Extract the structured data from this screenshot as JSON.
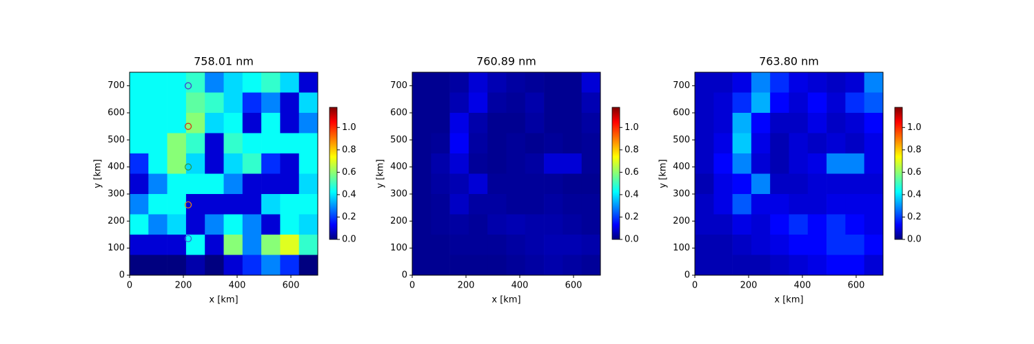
{
  "chart_data": [
    {
      "type": "heatmap",
      "title": "758.01 nm",
      "xlabel": "x [km]",
      "ylabel": "y [km]",
      "colormap": "jet",
      "xlim": [
        0,
        700
      ],
      "ylim": [
        0,
        750
      ],
      "xticks": [
        0,
        200,
        400,
        600
      ],
      "yticks": [
        0,
        100,
        200,
        300,
        400,
        500,
        600,
        700
      ],
      "clim": [
        0,
        1.18
      ],
      "cticks": [
        {
          "value": 0,
          "label": "0.0"
        },
        0.2,
        0.4,
        0.6,
        0.8,
        {
          "value": 1,
          "label": "1.0"
        }
      ],
      "z": [
        [
          0.45,
          0.45,
          0.45,
          0.5,
          0.3,
          0.4,
          0.45,
          0.5,
          0.4,
          0.1
        ],
        [
          0.45,
          0.45,
          0.45,
          0.55,
          0.5,
          0.4,
          0.2,
          0.3,
          0.1,
          0.4
        ],
        [
          0.45,
          0.45,
          0.45,
          0.6,
          0.4,
          0.45,
          0.1,
          0.45,
          0.1,
          0.3
        ],
        [
          0.45,
          0.45,
          0.6,
          0.5,
          0.1,
          0.5,
          0.45,
          0.45,
          0.45,
          0.45
        ],
        [
          0.2,
          0.45,
          0.6,
          0.4,
          0.1,
          0.4,
          0.5,
          0.2,
          0.1,
          0.45
        ],
        [
          0.1,
          0.3,
          0.45,
          0.45,
          0.45,
          0.3,
          0.1,
          0.1,
          0.1,
          0.4
        ],
        [
          0.3,
          0.45,
          0.45,
          0.1,
          0.1,
          0.1,
          0.1,
          0.4,
          0.45,
          0.45
        ],
        [
          0.45,
          0.3,
          0.4,
          0.1,
          0.3,
          0.45,
          0.3,
          0.1,
          0.45,
          0.4
        ],
        [
          0.1,
          0.1,
          0.1,
          0.45,
          0.1,
          0.6,
          0.3,
          0.6,
          0.7,
          0.5
        ],
        [
          0,
          0,
          0,
          0.05,
          0,
          0.1,
          0.2,
          0.3,
          0.2,
          0
        ]
      ],
      "markers": {
        "x": [
          218,
          218,
          218,
          218,
          218
        ],
        "y": [
          700,
          550,
          400,
          260,
          135
        ],
        "colors": [
          "#4a3fc8",
          "#d03a1a",
          "#2a9a4a",
          "#e0801a",
          "#3a5ae0"
        ]
      }
    },
    {
      "type": "heatmap",
      "title": "760.89 nm",
      "xlabel": "x [km]",
      "ylabel": "y [km]",
      "colormap": "jet",
      "xlim": [
        0,
        700
      ],
      "ylim": [
        0,
        750
      ],
      "xticks": [
        0,
        200,
        400,
        600
      ],
      "yticks": [
        0,
        100,
        200,
        300,
        400,
        500,
        600,
        700
      ],
      "clim": [
        0,
        1.18
      ],
      "cticks": [
        {
          "value": 0,
          "label": "0.0"
        },
        0.2,
        0.4,
        0.6,
        0.8,
        {
          "value": 1,
          "label": "1.0"
        }
      ],
      "z": [
        [
          0.02,
          0.02,
          0.04,
          0.1,
          0.06,
          0.04,
          0.03,
          0.02,
          0.02,
          0.1
        ],
        [
          0.02,
          0.02,
          0.06,
          0.12,
          0.04,
          0.03,
          0.05,
          0.02,
          0.02,
          0.06
        ],
        [
          0.02,
          0.02,
          0.12,
          0.05,
          0.02,
          0.02,
          0.04,
          0.02,
          0.02,
          0.04
        ],
        [
          0.02,
          0.03,
          0.14,
          0.04,
          0.02,
          0.03,
          0.02,
          0.03,
          0.02,
          0.03
        ],
        [
          0.02,
          0.05,
          0.1,
          0.03,
          0.02,
          0.03,
          0.04,
          0.1,
          0.1,
          0.03
        ],
        [
          0.02,
          0.04,
          0.06,
          0.1,
          0.03,
          0.03,
          0.03,
          0.03,
          0.02,
          0.02
        ],
        [
          0.02,
          0.03,
          0.08,
          0.04,
          0.04,
          0.03,
          0.03,
          0.04,
          0.03,
          0.03
        ],
        [
          0.02,
          0.03,
          0.04,
          0.03,
          0.05,
          0.06,
          0.05,
          0.05,
          0.04,
          0.03
        ],
        [
          0.02,
          0.02,
          0.03,
          0.03,
          0.03,
          0.04,
          0.05,
          0.06,
          0.06,
          0.05
        ],
        [
          0.02,
          0.02,
          0.02,
          0.02,
          0.02,
          0.03,
          0.04,
          0.05,
          0.04,
          0.03
        ]
      ]
    },
    {
      "type": "heatmap",
      "title": "763.80 nm",
      "xlabel": "x [km]",
      "ylabel": "y [km]",
      "colormap": "jet",
      "xlim": [
        0,
        700
      ],
      "ylim": [
        0,
        750
      ],
      "xticks": [
        0,
        200,
        400,
        600
      ],
      "yticks": [
        0,
        100,
        200,
        300,
        400,
        500,
        600,
        700
      ],
      "clim": [
        0,
        1.18
      ],
      "cticks": [
        {
          "value": 0,
          "label": "0.0"
        },
        0.2,
        0.4,
        0.6,
        0.8,
        {
          "value": 1,
          "label": "1.0"
        }
      ],
      "z": [
        [
          0.08,
          0.08,
          0.12,
          0.3,
          0.2,
          0.12,
          0.1,
          0.08,
          0.1,
          0.3
        ],
        [
          0.08,
          0.1,
          0.2,
          0.35,
          0.15,
          0.1,
          0.15,
          0.1,
          0.2,
          0.25
        ],
        [
          0.08,
          0.1,
          0.35,
          0.15,
          0.08,
          0.08,
          0.12,
          0.08,
          0.1,
          0.15
        ],
        [
          0.08,
          0.12,
          0.38,
          0.12,
          0.06,
          0.1,
          0.08,
          0.1,
          0.08,
          0.12
        ],
        [
          0.08,
          0.15,
          0.3,
          0.1,
          0.06,
          0.1,
          0.12,
          0.3,
          0.3,
          0.12
        ],
        [
          0.06,
          0.12,
          0.15,
          0.3,
          0.08,
          0.08,
          0.1,
          0.1,
          0.1,
          0.1
        ],
        [
          0.08,
          0.12,
          0.25,
          0.12,
          0.12,
          0.1,
          0.1,
          0.12,
          0.12,
          0.12
        ],
        [
          0.08,
          0.08,
          0.12,
          0.1,
          0.15,
          0.2,
          0.15,
          0.2,
          0.15,
          0.12
        ],
        [
          0.06,
          0.06,
          0.08,
          0.1,
          0.12,
          0.15,
          0.15,
          0.2,
          0.2,
          0.15
        ],
        [
          0.06,
          0.06,
          0.06,
          0.06,
          0.08,
          0.1,
          0.12,
          0.15,
          0.15,
          0.1
        ]
      ]
    }
  ]
}
